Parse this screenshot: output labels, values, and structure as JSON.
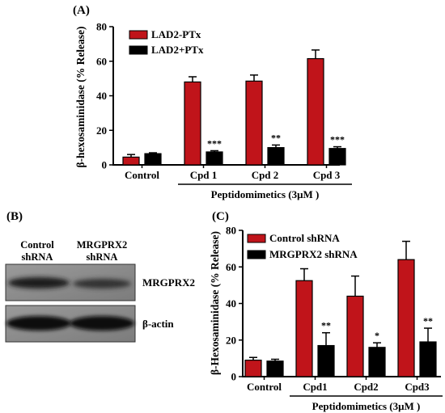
{
  "colors": {
    "red": "#c0141a",
    "black": "#000000",
    "blot_bg": "#8a8a8a",
    "band": "#1a1a1a"
  },
  "chart_data": [
    {
      "panel": "(A)",
      "type": "bar",
      "ylabel": "β-hexosaminidase (% Release)",
      "ylim": [
        0,
        80
      ],
      "yticks": [
        0,
        20,
        40,
        60,
        80
      ],
      "categories": [
        "Control",
        "Cpd 1",
        "Cpd 2",
        "Cpd 3"
      ],
      "group_label": "Peptidomimetics (3μM )",
      "legend_position": "top-left",
      "series": [
        {
          "name": "LAD2-PTx",
          "color": "#c0141a",
          "values": [
            4.5,
            48,
            48.5,
            61.5
          ],
          "errors": [
            1.5,
            3,
            3.5,
            5
          ]
        },
        {
          "name": "LAD2+PTx",
          "color": "#000000",
          "values": [
            6.5,
            7.5,
            10,
            9.5
          ],
          "errors": [
            0.5,
            0.7,
            1.5,
            1
          ]
        }
      ],
      "significance": [
        "",
        "***",
        "**",
        "***"
      ]
    },
    {
      "panel": "(C)",
      "type": "bar",
      "ylabel": "β-Hexosaminidase (% Release)",
      "ylim": [
        0,
        80
      ],
      "yticks": [
        0,
        20,
        40,
        60,
        80
      ],
      "categories": [
        "Control",
        "Cpd1",
        "Cpd2",
        "Cpd3"
      ],
      "group_label": "Peptidomimetics (3μM )",
      "legend_position": "top-left",
      "series": [
        {
          "name": "Control shRNA",
          "color": "#c0141a",
          "values": [
            9,
            52.5,
            44,
            64
          ],
          "errors": [
            1.5,
            6.5,
            11,
            10
          ]
        },
        {
          "name": "MRGPRX2 shRNA",
          "color": "#000000",
          "values": [
            8.5,
            17,
            16,
            19
          ],
          "errors": [
            1,
            7,
            2.5,
            7.5
          ]
        }
      ],
      "significance": [
        "",
        "**",
        "*",
        "**"
      ]
    }
  ],
  "blot": {
    "panel": "(B)",
    "lanes": [
      "Control\nshRNA",
      "MRGPRX2\nshRNA"
    ],
    "lane1_line1": "Control",
    "lane1_line2": "shRNA",
    "lane2_line1": "MRGPRX2",
    "lane2_line2": "shRNA",
    "bands": [
      "MRGPRX2",
      "β-actin"
    ]
  }
}
